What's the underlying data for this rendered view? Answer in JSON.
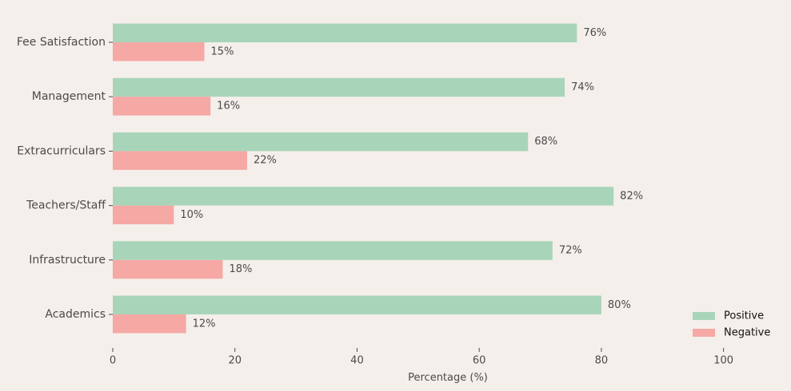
{
  "chart_data": {
    "type": "bar",
    "orientation": "horizontal",
    "categories": [
      "Fee Satisfaction",
      "Management",
      "Extracurriculars",
      "Teachers/Staff",
      "Infrastructure",
      "Academics"
    ],
    "series": [
      {
        "name": "Positive",
        "values": [
          76,
          74,
          68,
          82,
          72,
          80
        ],
        "color": "#a8d5b9"
      },
      {
        "name": "Negative",
        "values": [
          15,
          16,
          22,
          10,
          18,
          12
        ],
        "color": "#f5a8a4"
      }
    ],
    "value_suffix": "%",
    "title": "",
    "xlabel": "Percentage (%)",
    "ylabel": "",
    "xlim": [
      0,
      110
    ],
    "xticks": [
      0,
      20,
      40,
      60,
      80,
      100
    ],
    "grid": false,
    "legend_position": "bottom-right"
  },
  "colors": {
    "background": "#f5efeb",
    "text": "#4a4a4a",
    "axis": "#4a4a4a"
  }
}
